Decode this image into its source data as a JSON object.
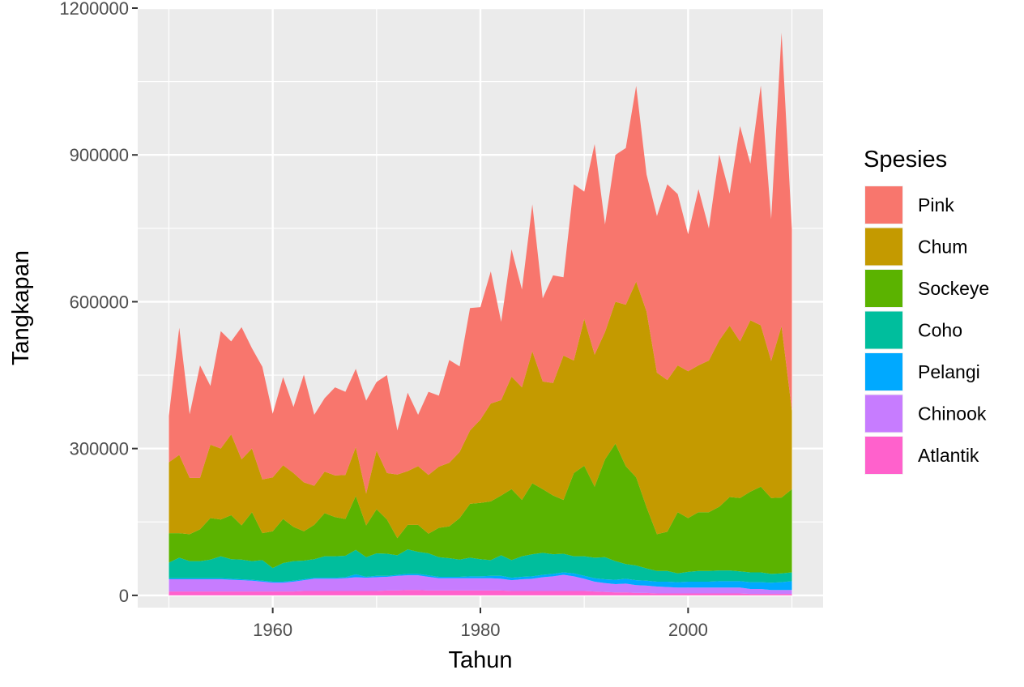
{
  "chart_data": {
    "type": "area",
    "stacked": true,
    "title": "",
    "xlabel": "Tahun",
    "ylabel": "Tangkapan",
    "xlim": [
      1947,
      2013
    ],
    "ylim": [
      -25000,
      1200000
    ],
    "xticks": [
      1960,
      1980,
      2000
    ],
    "yticks": [
      0,
      300000,
      600000,
      900000,
      1200000
    ],
    "x_tick_labels": [
      "1960",
      "1980",
      "2000"
    ],
    "y_tick_labels": [
      "0",
      "300000",
      "600000",
      "900000",
      "1200000"
    ],
    "grid": true,
    "legend": {
      "title": "Spesies",
      "position": "right"
    },
    "x": [
      1950,
      1951,
      1952,
      1953,
      1954,
      1955,
      1956,
      1957,
      1958,
      1959,
      1960,
      1961,
      1962,
      1963,
      1964,
      1965,
      1966,
      1967,
      1968,
      1969,
      1970,
      1971,
      1972,
      1973,
      1974,
      1975,
      1976,
      1977,
      1978,
      1979,
      1980,
      1981,
      1982,
      1983,
      1984,
      1985,
      1986,
      1987,
      1988,
      1989,
      1990,
      1991,
      1992,
      1993,
      1994,
      1995,
      1996,
      1997,
      1998,
      1999,
      2000,
      2001,
      2002,
      2003,
      2004,
      2005,
      2006,
      2007,
      2008,
      2009,
      2010
    ],
    "series": [
      {
        "name": "Atlantik",
        "color": "#FF61CC",
        "values": [
          8000,
          8000,
          8000,
          8000,
          8000,
          8000,
          8000,
          8000,
          8000,
          8000,
          8000,
          8000,
          8000,
          9000,
          9000,
          9000,
          9000,
          9000,
          9000,
          9000,
          9000,
          10000,
          10000,
          11000,
          11000,
          10000,
          10000,
          10000,
          10000,
          10000,
          10000,
          10000,
          10000,
          9000,
          9000,
          9000,
          9000,
          9000,
          9000,
          9000,
          9000,
          8000,
          7000,
          6000,
          6000,
          5000,
          5000,
          4000,
          4000,
          4000,
          4000,
          4000,
          4000,
          4000,
          4000,
          4000,
          3000,
          3000,
          3000,
          3000,
          3000
        ]
      },
      {
        "name": "Chinook",
        "color": "#C77CFF",
        "values": [
          25000,
          25000,
          25000,
          25000,
          25000,
          25000,
          24000,
          23000,
          22000,
          20000,
          18000,
          18000,
          20000,
          22000,
          25000,
          25000,
          25000,
          26000,
          28000,
          27000,
          28000,
          28000,
          30000,
          30000,
          30000,
          28000,
          25000,
          25000,
          25000,
          25000,
          25000,
          25000,
          24000,
          22000,
          24000,
          25000,
          28000,
          30000,
          33000,
          30000,
          25000,
          20000,
          18000,
          17000,
          18000,
          16000,
          15000,
          14000,
          13000,
          12000,
          12000,
          12000,
          12000,
          12000,
          12000,
          12000,
          10000,
          10000,
          8000,
          8000,
          8000
        ]
      },
      {
        "name": "Pelangi",
        "color": "#00A9FF",
        "values": [
          2000,
          2000,
          2000,
          2000,
          2000,
          2000,
          2000,
          2000,
          2000,
          2000,
          2000,
          2000,
          2000,
          2000,
          2000,
          2000,
          2000,
          2000,
          6000,
          2000,
          3000,
          2000,
          2000,
          3000,
          3000,
          3000,
          3000,
          3000,
          3000,
          4000,
          4000,
          5000,
          6000,
          5000,
          5000,
          5000,
          5000,
          5000,
          5000,
          6000,
          6000,
          7000,
          8000,
          9000,
          10000,
          10000,
          10000,
          10000,
          11000,
          11000,
          12000,
          12000,
          12000,
          13000,
          13000,
          13000,
          14000,
          14000,
          15000,
          16000,
          18000
        ]
      },
      {
        "name": "Coho",
        "color": "#00BE9D",
        "values": [
          32000,
          42000,
          35000,
          35000,
          38000,
          45000,
          40000,
          40000,
          38000,
          42000,
          28000,
          38000,
          40000,
          38000,
          38000,
          44000,
          44000,
          44000,
          50000,
          40000,
          46000,
          45000,
          40000,
          50000,
          45000,
          45000,
          40000,
          38000,
          35000,
          38000,
          35000,
          32000,
          42000,
          36000,
          42000,
          45000,
          45000,
          40000,
          38000,
          35000,
          40000,
          42000,
          45000,
          38000,
          30000,
          30000,
          25000,
          22000,
          22000,
          18000,
          20000,
          22000,
          22000,
          22000,
          22000,
          20000,
          20000,
          20000,
          18000,
          18000,
          18000
        ]
      },
      {
        "name": "Sockeye",
        "color": "#5BB300",
        "values": [
          60000,
          50000,
          55000,
          65000,
          85000,
          75000,
          90000,
          70000,
          100000,
          55000,
          75000,
          90000,
          70000,
          60000,
          70000,
          88000,
          80000,
          75000,
          110000,
          65000,
          90000,
          70000,
          35000,
          50000,
          55000,
          40000,
          60000,
          65000,
          85000,
          110000,
          115000,
          120000,
          122000,
          145000,
          115000,
          145000,
          130000,
          120000,
          110000,
          170000,
          185000,
          145000,
          200000,
          240000,
          200000,
          180000,
          125000,
          75000,
          80000,
          125000,
          110000,
          120000,
          120000,
          130000,
          150000,
          150000,
          165000,
          175000,
          155000,
          155000,
          170000
        ]
      },
      {
        "name": "Chum",
        "color": "#C49A00",
        "values": [
          145000,
          160000,
          115000,
          105000,
          150000,
          145000,
          165000,
          135000,
          130000,
          110000,
          110000,
          110000,
          110000,
          100000,
          80000,
          85000,
          85000,
          90000,
          100000,
          65000,
          120000,
          95000,
          130000,
          110000,
          120000,
          120000,
          125000,
          130000,
          135000,
          150000,
          170000,
          200000,
          195000,
          230000,
          230000,
          270000,
          220000,
          230000,
          295000,
          230000,
          300000,
          270000,
          260000,
          290000,
          330000,
          400000,
          400000,
          330000,
          310000,
          300000,
          300000,
          300000,
          310000,
          340000,
          350000,
          320000,
          350000,
          330000,
          280000,
          350000,
          160000
        ]
      },
      {
        "name": "Pink",
        "color": "#F8766D",
        "values": [
          95000,
          260000,
          130000,
          230000,
          120000,
          240000,
          190000,
          270000,
          205000,
          230000,
          130000,
          180000,
          135000,
          220000,
          145000,
          150000,
          180000,
          170000,
          160000,
          190000,
          140000,
          200000,
          90000,
          160000,
          105000,
          170000,
          145000,
          210000,
          175000,
          250000,
          230000,
          270000,
          160000,
          260000,
          200000,
          300000,
          170000,
          220000,
          160000,
          360000,
          260000,
          430000,
          220000,
          300000,
          320000,
          400000,
          280000,
          320000,
          400000,
          350000,
          280000,
          360000,
          270000,
          380000,
          270000,
          440000,
          320000,
          490000,
          290000,
          600000,
          370000
        ]
      }
    ]
  }
}
